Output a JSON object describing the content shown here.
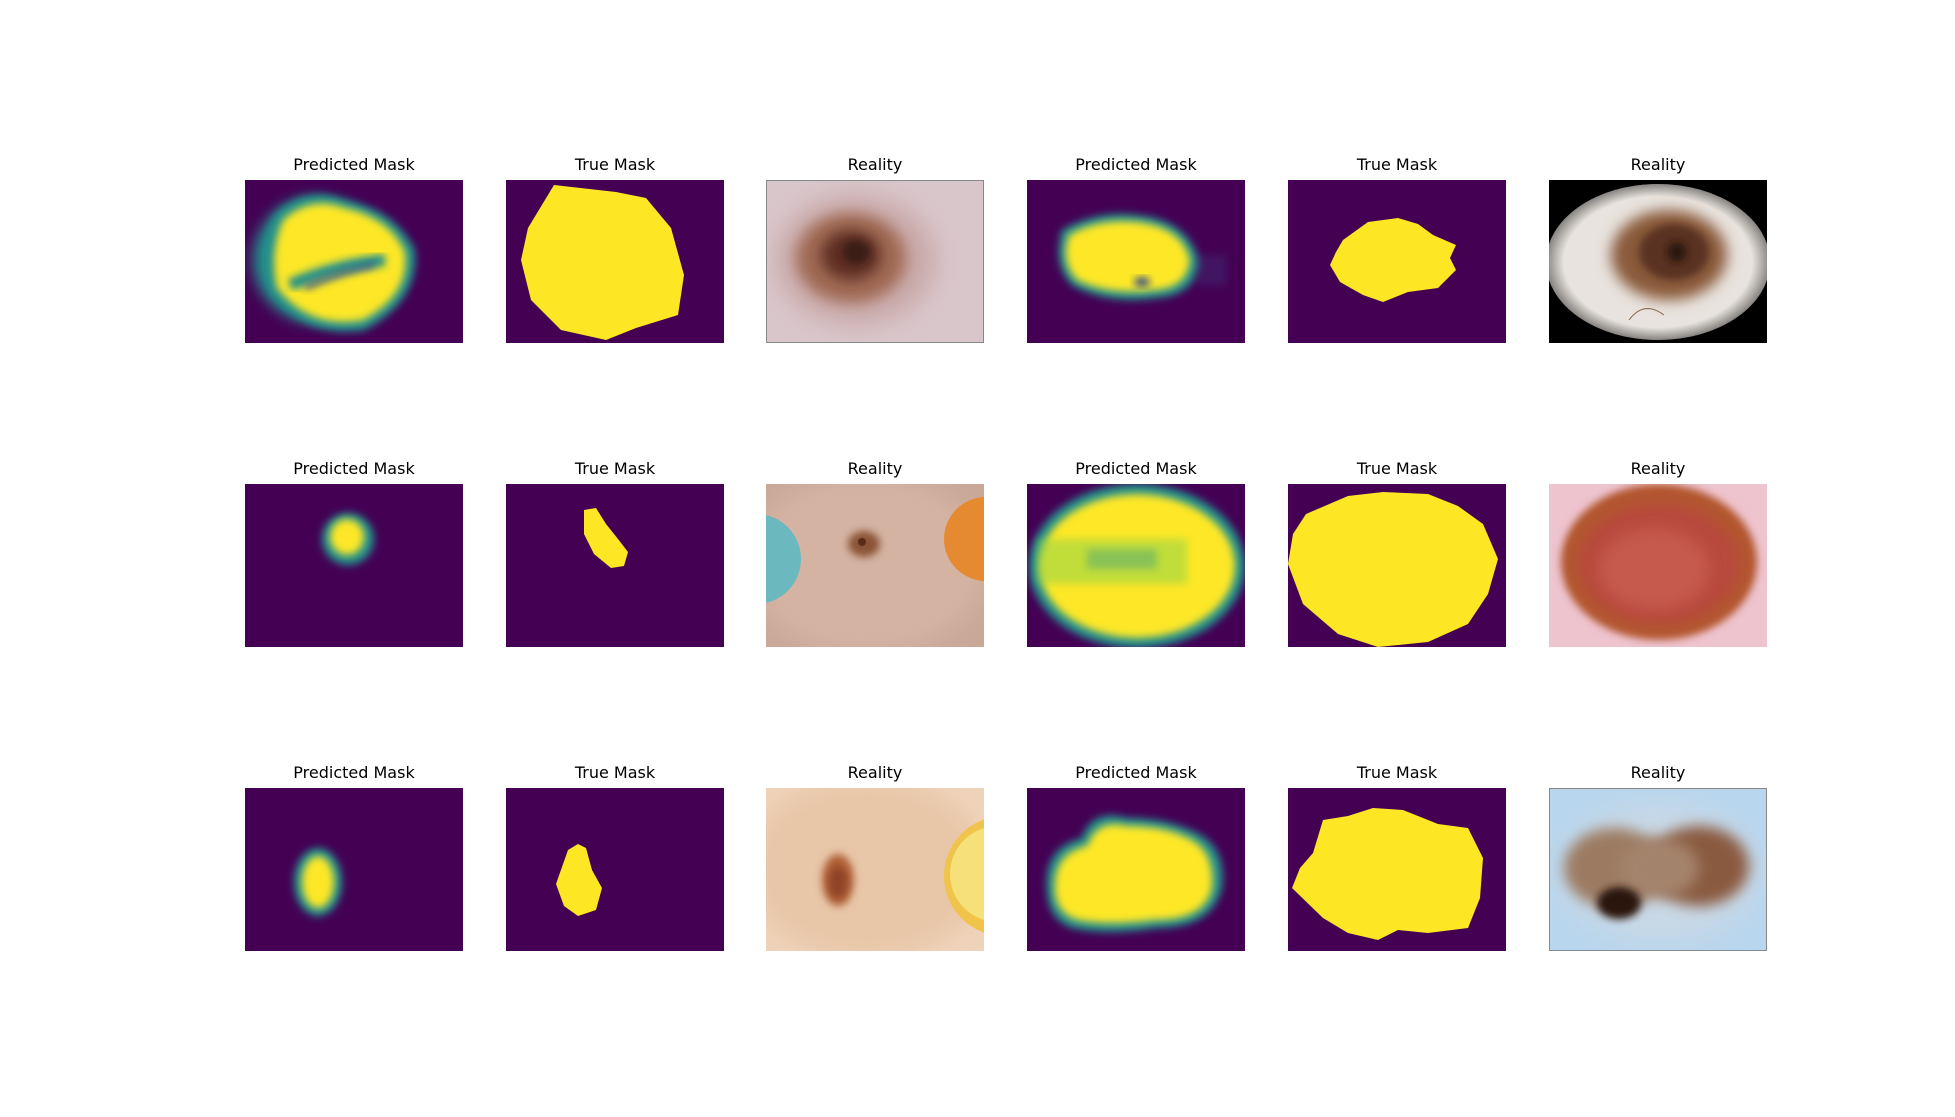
{
  "figure": {
    "rows": [
      [
        {
          "title": "Predicted Mask",
          "kind": "predicted"
        },
        {
          "title": "True Mask",
          "kind": "true"
        },
        {
          "title": "Reality",
          "kind": "reality"
        },
        {
          "title": "Predicted Mask",
          "kind": "predicted"
        },
        {
          "title": "True Mask",
          "kind": "true"
        },
        {
          "title": "Reality",
          "kind": "reality"
        }
      ],
      [
        {
          "title": "Predicted Mask",
          "kind": "predicted"
        },
        {
          "title": "True Mask",
          "kind": "true"
        },
        {
          "title": "Reality",
          "kind": "reality"
        },
        {
          "title": "Predicted Mask",
          "kind": "predicted"
        },
        {
          "title": "True Mask",
          "kind": "true"
        },
        {
          "title": "Reality",
          "kind": "reality"
        }
      ],
      [
        {
          "title": "Predicted Mask",
          "kind": "predicted"
        },
        {
          "title": "True Mask",
          "kind": "true"
        },
        {
          "title": "Reality",
          "kind": "reality"
        },
        {
          "title": "Predicted Mask",
          "kind": "predicted"
        },
        {
          "title": "True Mask",
          "kind": "true"
        },
        {
          "title": "Reality",
          "kind": "reality"
        }
      ]
    ],
    "colors": {
      "mask_background": "#440154",
      "mask_foreground": "#fde725",
      "mask_edge": "#21918c"
    }
  }
}
